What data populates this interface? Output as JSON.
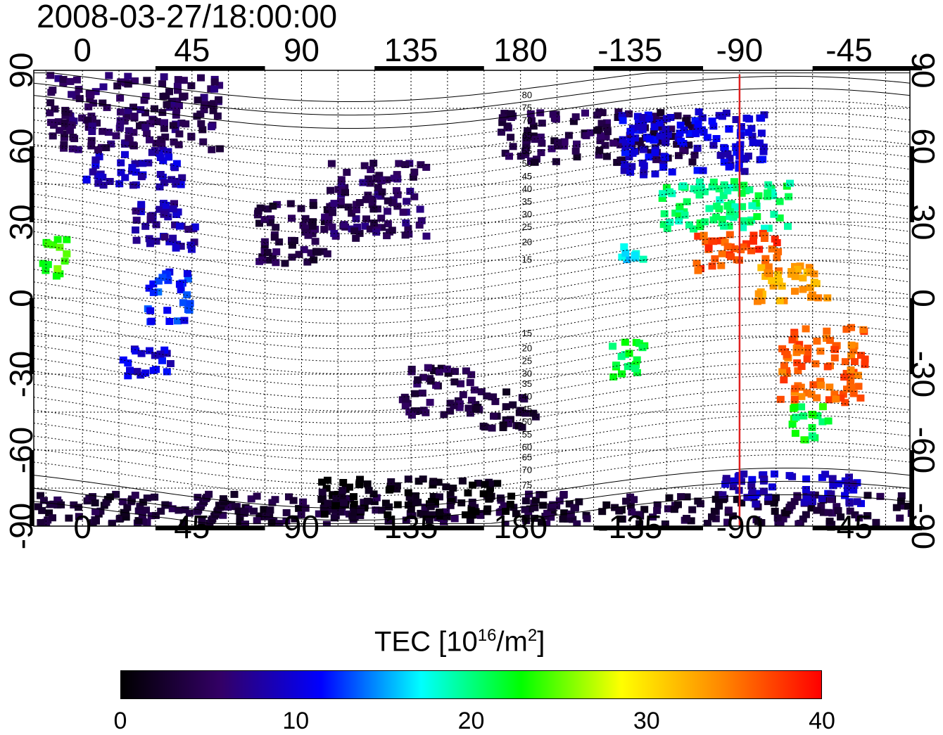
{
  "title": "2008-03-27/18:00:00",
  "colorbar": {
    "label_prefix": "TEC  [10",
    "label_exp": "16",
    "label_mid": "/m",
    "label_exp2": "2",
    "label_suffix": "]",
    "ticks": [
      "0",
      "10",
      "20",
      "30",
      "40"
    ],
    "min": 0,
    "max": 40,
    "colors": [
      "#000000",
      "#330066",
      "#0000ff",
      "#00ffff",
      "#00ff00",
      "#ffff00",
      "#ff8800",
      "#ff0000"
    ]
  },
  "axes": {
    "x_ticks": [
      "0",
      "45",
      "90",
      "135",
      "180",
      "-135",
      "-90",
      "-45"
    ],
    "y_ticks": [
      "90",
      "60",
      "30",
      "0",
      "-30",
      "-60",
      "-90"
    ],
    "lon_range": [
      -20,
      340
    ],
    "lat_range": [
      -90,
      90
    ]
  },
  "meridian_marker": {
    "longitude": -90,
    "color": "#e02020"
  },
  "contour_labels": [
    "80",
    "75",
    "70",
    "65",
    "55",
    "50",
    "45",
    "40",
    "35",
    "30",
    "25",
    "20",
    "15",
    "15",
    "20",
    "25",
    "30",
    "35",
    "40",
    "45",
    "50",
    "55",
    "60",
    "65",
    "70",
    "75"
  ],
  "regions": {
    "tec": [
      {
        "lon": -15,
        "lat": 60,
        "w": 70,
        "h": 30,
        "v": 5
      },
      {
        "lon": 0,
        "lat": 45,
        "w": 40,
        "h": 15,
        "v": 9
      },
      {
        "lon": 20,
        "lat": 20,
        "w": 25,
        "h": 20,
        "v": 8
      },
      {
        "lon": 25,
        "lat": -8,
        "w": 18,
        "h": 20,
        "v": 12
      },
      {
        "lon": 15,
        "lat": -30,
        "w": 20,
        "h": 12,
        "v": 10
      },
      {
        "lon": -18,
        "lat": 10,
        "w": 12,
        "h": 15,
        "v": 24
      },
      {
        "lon": 70,
        "lat": 15,
        "w": 30,
        "h": 25,
        "v": 4
      },
      {
        "lon": 100,
        "lat": 25,
        "w": 40,
        "h": 30,
        "v": 5
      },
      {
        "lon": 130,
        "lat": -45,
        "w": 30,
        "h": 20,
        "v": 4
      },
      {
        "lon": 160,
        "lat": -50,
        "w": 25,
        "h": 15,
        "v": 3
      },
      {
        "lon": 170,
        "lat": 55,
        "w": 80,
        "h": 20,
        "v": 4
      },
      {
        "lon": -140,
        "lat": 50,
        "w": 60,
        "h": 25,
        "v": 10
      },
      {
        "lon": -125,
        "lat": 28,
        "w": 55,
        "h": 20,
        "v": 20
      },
      {
        "lon": -110,
        "lat": 12,
        "w": 35,
        "h": 15,
        "v": 37
      },
      {
        "lon": -85,
        "lat": 0,
        "w": 30,
        "h": 15,
        "v": 33
      },
      {
        "lon": -75,
        "lat": -40,
        "w": 35,
        "h": 30,
        "v": 36
      },
      {
        "lon": -70,
        "lat": -55,
        "w": 15,
        "h": 15,
        "v": 22
      },
      {
        "lon": -145,
        "lat": -30,
        "w": 15,
        "h": 15,
        "v": 21
      },
      {
        "lon": -140,
        "lat": 15,
        "w": 10,
        "h": 10,
        "v": 17
      },
      {
        "lon": -20,
        "lat": -88,
        "w": 360,
        "h": 12,
        "v": 3
      },
      {
        "lon": 95,
        "lat": -85,
        "w": 80,
        "h": 15,
        "v": 1
      },
      {
        "lon": -100,
        "lat": -80,
        "w": 60,
        "h": 12,
        "v": 9
      }
    ]
  }
}
